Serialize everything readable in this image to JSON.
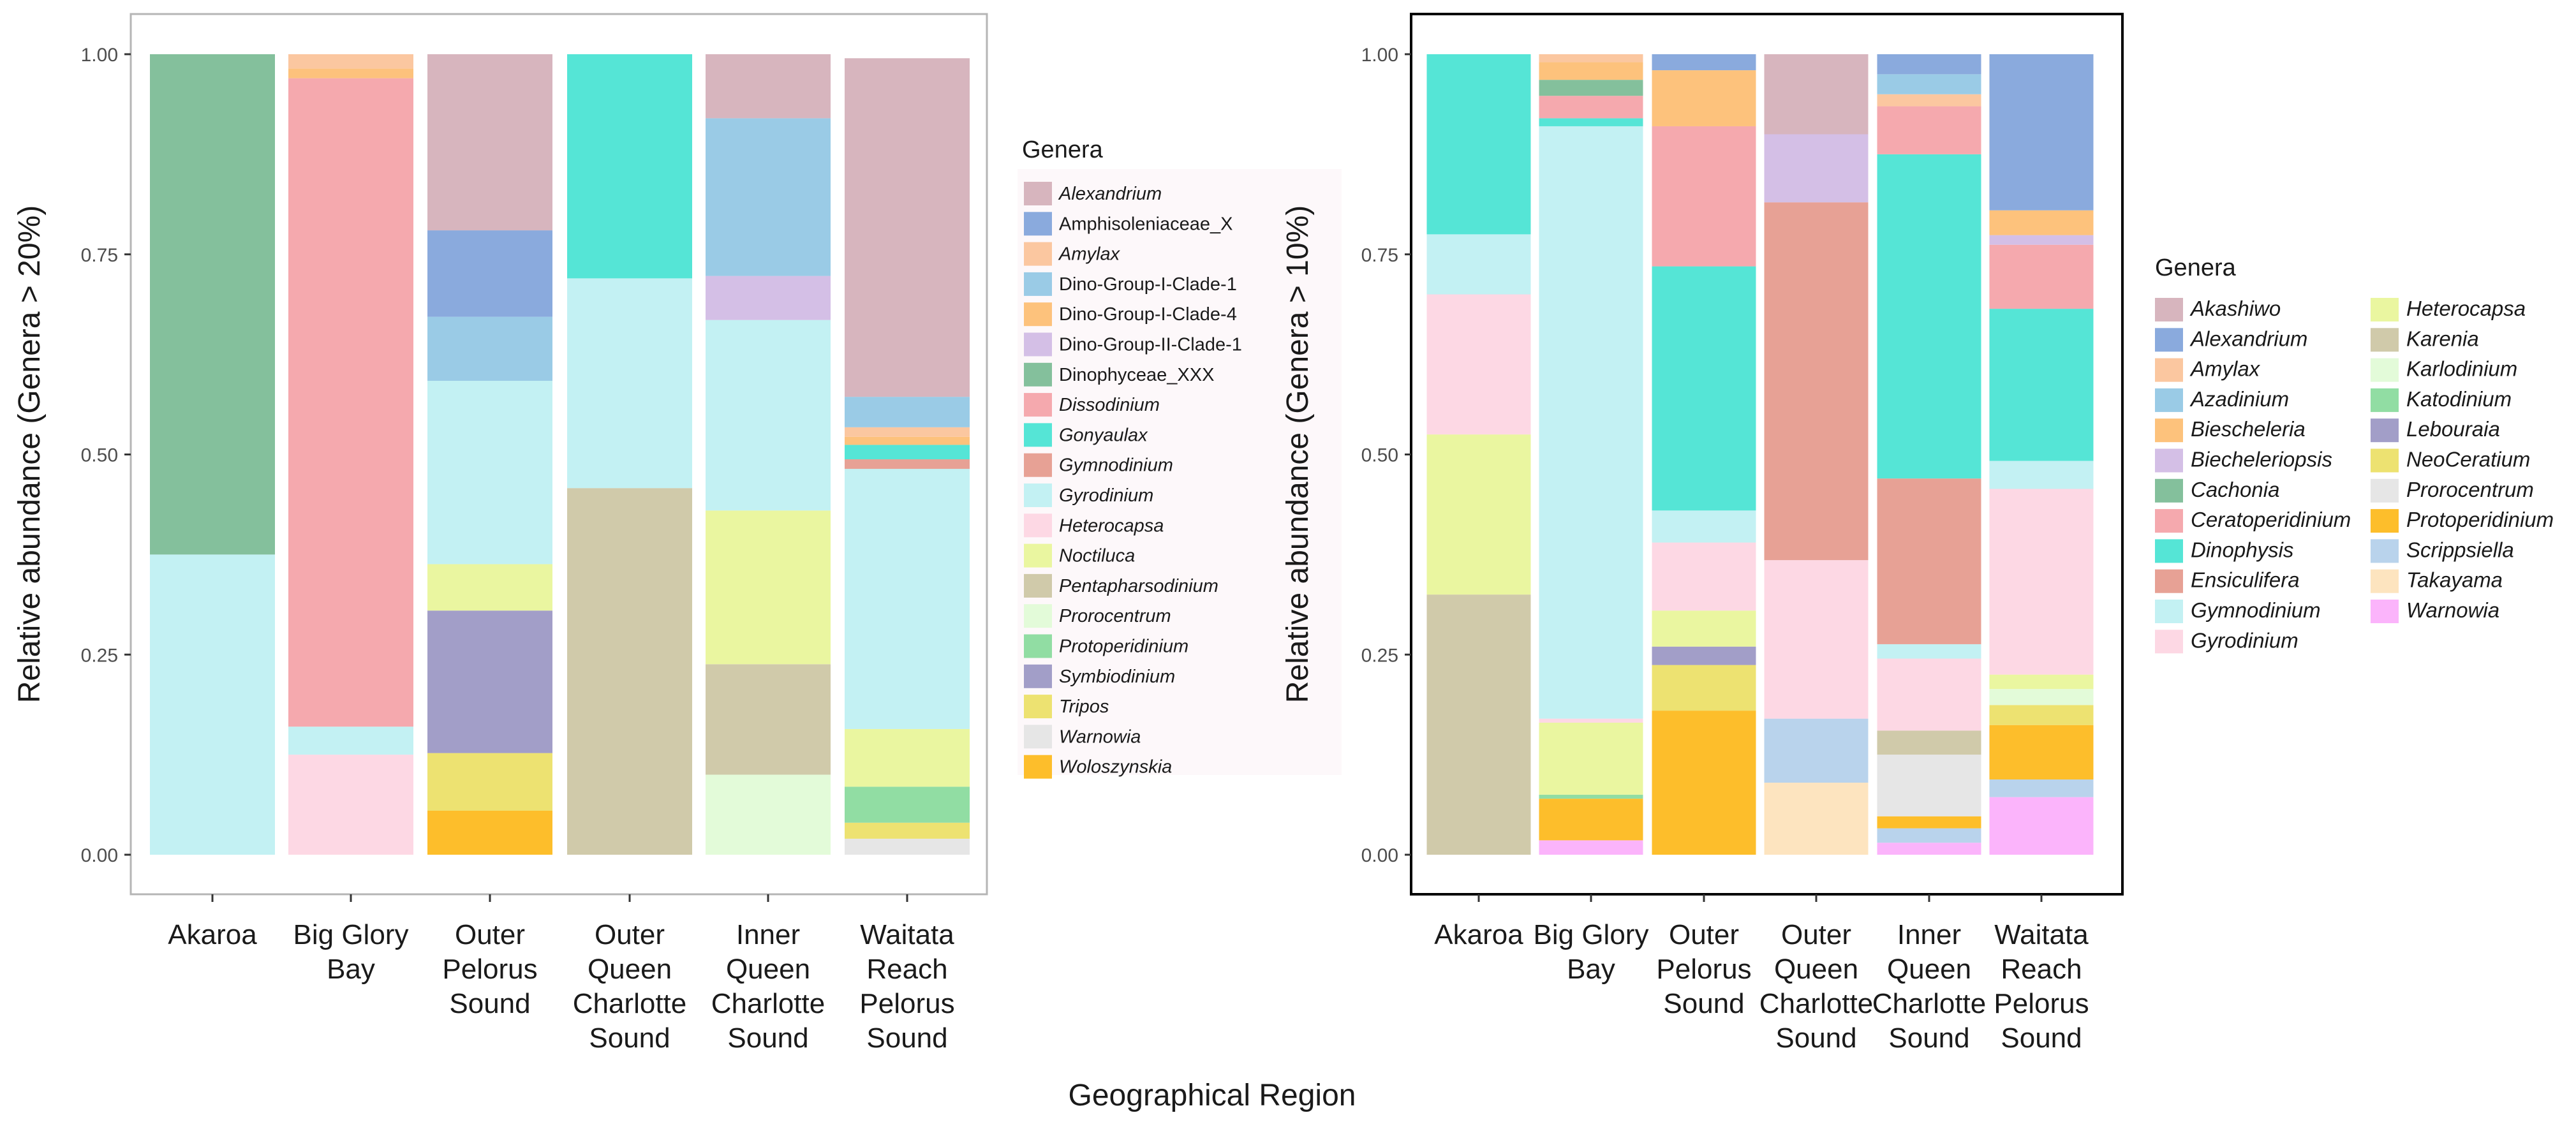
{
  "chart_data": [
    {
      "panel": "A",
      "type": "stacked-bar",
      "ylabel": "Relative abundance (Genera > 20%)",
      "xlabel": "Geographical Region",
      "ylim": [
        0,
        1
      ],
      "yticks": [
        "0.00",
        "0.25",
        "0.50",
        "0.75",
        "1.00"
      ],
      "categories": [
        [
          "Akaroa"
        ],
        [
          "Big Glory",
          "Bay"
        ],
        [
          "Outer",
          "Pelorus",
          "Sound"
        ],
        [
          "Outer",
          "Queen",
          "Charlotte",
          "Sound"
        ],
        [
          "Inner",
          "Queen",
          "Charlotte",
          "Sound"
        ],
        [
          "Waitata",
          "Reach",
          "Pelorus",
          "Sound"
        ]
      ],
      "legend_title": "Genera",
      "genera": [
        {
          "name": "Alexandrium",
          "color": "#D7B5BE",
          "italic": true
        },
        {
          "name": "Amphisoleniaceae_X",
          "color": "#8AAADD",
          "italic": false
        },
        {
          "name": "Amylax",
          "color": "#FBC7A0",
          "italic": true
        },
        {
          "name": "Dino-Group-I-Clade-1",
          "color": "#9ACBE6",
          "italic": false
        },
        {
          "name": "Dino-Group-I-Clade-4",
          "color": "#FDC27C",
          "italic": false
        },
        {
          "name": "Dino-Group-II-Clade-1",
          "color": "#D4BFE6",
          "italic": false
        },
        {
          "name": "Dinophyceae_XXX",
          "color": "#84C09C",
          "italic": false
        },
        {
          "name": "Dissodinium",
          "color": "#F5A9AE",
          "italic": true
        },
        {
          "name": "Gonyaulax",
          "color": "#55E5D6",
          "italic": true
        },
        {
          "name": "Gymnodinium",
          "color": "#E7A195",
          "italic": true
        },
        {
          "name": "Gyrodinium",
          "color": "#C3F1F3",
          "italic": true
        },
        {
          "name": "Heterocapsa",
          "color": "#FDD8E4",
          "italic": true
        },
        {
          "name": "Noctiluca",
          "color": "#EAF6A0",
          "italic": true
        },
        {
          "name": "Pentapharsodinium",
          "color": "#D0CAAA",
          "italic": true
        },
        {
          "name": "Prorocentrum",
          "color": "#E3FBD9",
          "italic": true
        },
        {
          "name": "Protoperidinium",
          "color": "#91DDA3",
          "italic": true
        },
        {
          "name": "Symbiodinium",
          "color": "#A29EC8",
          "italic": true
        },
        {
          "name": "Tripos",
          "color": "#EDE271",
          "italic": true
        },
        {
          "name": "Warnowia",
          "color": "#E6E6E6",
          "italic": true
        },
        {
          "name": "Woloszynskia",
          "color": "#FDBE2B",
          "italic": true
        }
      ],
      "stacks": [
        [
          {
            "genus": "Gyrodinium",
            "value": 0.375
          },
          {
            "genus": "Dinophyceae_XXX",
            "value": 0.625
          }
        ],
        [
          {
            "genus": "Heterocapsa",
            "value": 0.125
          },
          {
            "genus": "Gyrodinium",
            "value": 0.035
          },
          {
            "genus": "Dissodinium",
            "value": 0.81
          },
          {
            "genus": "Dino-Group-I-Clade-4",
            "value": 0.012
          },
          {
            "genus": "Amylax",
            "value": 0.018
          }
        ],
        [
          {
            "genus": "Woloszynskia",
            "value": 0.055
          },
          {
            "genus": "Tripos",
            "value": 0.072
          },
          {
            "genus": "Symbiodinium",
            "value": 0.178
          },
          {
            "genus": "Noctiluca",
            "value": 0.058
          },
          {
            "genus": "Gyrodinium",
            "value": 0.229
          },
          {
            "genus": "Dino-Group-I-Clade-1",
            "value": 0.08
          },
          {
            "genus": "Amphisoleniaceae_X",
            "value": 0.108
          },
          {
            "genus": "Alexandrium",
            "value": 0.22
          }
        ],
        [
          {
            "genus": "Pentapharsodinium",
            "value": 0.458
          },
          {
            "genus": "Gyrodinium",
            "value": 0.262
          },
          {
            "genus": "Gonyaulax",
            "value": 0.28
          }
        ],
        [
          {
            "genus": "Prorocentrum",
            "value": 0.1
          },
          {
            "genus": "Pentapharsodinium",
            "value": 0.138
          },
          {
            "genus": "Noctiluca",
            "value": 0.192
          },
          {
            "genus": "Gyrodinium",
            "value": 0.238
          },
          {
            "genus": "Dino-Group-II-Clade-1",
            "value": 0.055
          },
          {
            "genus": "Dino-Group-I-Clade-1",
            "value": 0.197
          },
          {
            "genus": "Alexandrium",
            "value": 0.08
          }
        ],
        [
          {
            "genus": "Warnowia",
            "value": 0.02
          },
          {
            "genus": "Tripos",
            "value": 0.02
          },
          {
            "genus": "Protoperidinium",
            "value": 0.045
          },
          {
            "genus": "Noctiluca",
            "value": 0.072
          },
          {
            "genus": "Gyrodinium",
            "value": 0.325
          },
          {
            "genus": "Gymnodinium",
            "value": 0.012
          },
          {
            "genus": "Gonyaulax",
            "value": 0.018
          },
          {
            "genus": "Dino-Group-I-Clade-4",
            "value": 0.01
          },
          {
            "genus": "Amylax",
            "value": 0.012
          },
          {
            "genus": "Dino-Group-I-Clade-1",
            "value": 0.038
          },
          {
            "genus": "Alexandrium",
            "value": 0.423
          }
        ]
      ]
    },
    {
      "panel": "B",
      "type": "stacked-bar",
      "ylabel": "Relative abundance (Genera > 10%)",
      "xlabel": "Geographical Region",
      "ylim": [
        0,
        1
      ],
      "yticks": [
        "0.00",
        "0.25",
        "0.50",
        "0.75",
        "1.00"
      ],
      "categories": [
        [
          "Akaroa"
        ],
        [
          "Big Glory",
          "Bay"
        ],
        [
          "Outer",
          "Pelorus",
          "Sound"
        ],
        [
          "Outer",
          "Queen",
          "Charlotte",
          "Sound"
        ],
        [
          "Inner",
          "Queen",
          "Charlotte",
          "Sound"
        ],
        [
          "Waitata",
          "Reach",
          "Pelorus",
          "Sound"
        ]
      ],
      "legend_title": "Genera",
      "genera": [
        {
          "name": "Akashiwo",
          "color": "#D7B5BE",
          "italic": true
        },
        {
          "name": "Alexandrium",
          "color": "#8AAADD",
          "italic": true
        },
        {
          "name": "Amylax",
          "color": "#FBC7A0",
          "italic": true
        },
        {
          "name": "Azadinium",
          "color": "#9ACBE6",
          "italic": true
        },
        {
          "name": "Biescheleria",
          "color": "#FDC27C",
          "italic": true
        },
        {
          "name": "Biecheleriopsis",
          "color": "#D4BFE6",
          "italic": true
        },
        {
          "name": "Cachonia",
          "color": "#84C09C",
          "italic": true
        },
        {
          "name": "Ceratoperidinium",
          "color": "#F5A9AE",
          "italic": true
        },
        {
          "name": "Dinophysis",
          "color": "#55E5D6",
          "italic": true
        },
        {
          "name": "Ensiculifera",
          "color": "#E7A195",
          "italic": true
        },
        {
          "name": "Gymnodinium",
          "color": "#C3F1F3",
          "italic": true
        },
        {
          "name": "Gyrodinium",
          "color": "#FDD8E4",
          "italic": true
        },
        {
          "name": "Heterocapsa",
          "color": "#EAF6A0",
          "italic": true
        },
        {
          "name": "Karenia",
          "color": "#D0CAAA",
          "italic": true
        },
        {
          "name": "Karlodinium",
          "color": "#E3FBD9",
          "italic": true
        },
        {
          "name": "Katodinium",
          "color": "#91DDA3",
          "italic": true
        },
        {
          "name": "Lebouraia",
          "color": "#A29EC8",
          "italic": true
        },
        {
          "name": "NeoCeratium",
          "color": "#EDE271",
          "italic": true
        },
        {
          "name": "Prorocentrum",
          "color": "#E6E6E6",
          "italic": true
        },
        {
          "name": "Protoperidinium",
          "color": "#FDBE2B",
          "italic": true
        },
        {
          "name": "Scrippsiella",
          "color": "#B9D3EC",
          "italic": true
        },
        {
          "name": "Takayama",
          "color": "#FDE4BF",
          "italic": true
        },
        {
          "name": "Warnowia",
          "color": "#FBB4FB",
          "italic": true
        }
      ],
      "stacks": [
        [
          {
            "genus": "Karenia",
            "value": 0.325
          },
          {
            "genus": "Heterocapsa",
            "value": 0.2
          },
          {
            "genus": "Gyrodinium",
            "value": 0.175
          },
          {
            "genus": "Gymnodinium",
            "value": 0.075
          },
          {
            "genus": "Dinophysis",
            "value": 0.225
          }
        ],
        [
          {
            "genus": "Warnowia",
            "value": 0.018
          },
          {
            "genus": "Protoperidinium",
            "value": 0.052
          },
          {
            "genus": "Katodinium",
            "value": 0.005
          },
          {
            "genus": "Heterocapsa",
            "value": 0.09
          },
          {
            "genus": "Gyrodinium",
            "value": 0.005
          },
          {
            "genus": "Gymnodinium",
            "value": 0.74
          },
          {
            "genus": "Dinophysis",
            "value": 0.01
          },
          {
            "genus": "Ceratoperidinium",
            "value": 0.028
          },
          {
            "genus": "Cachonia",
            "value": 0.02
          },
          {
            "genus": "Biescheleria",
            "value": 0.022
          },
          {
            "genus": "Amylax",
            "value": 0.01
          }
        ],
        [
          {
            "genus": "Protoperidinium",
            "value": 0.18
          },
          {
            "genus": "NeoCeratium",
            "value": 0.057
          },
          {
            "genus": "Lebouraia",
            "value": 0.023
          },
          {
            "genus": "Heterocapsa",
            "value": 0.045
          },
          {
            "genus": "Gyrodinium",
            "value": 0.085
          },
          {
            "genus": "Gymnodinium",
            "value": 0.04
          },
          {
            "genus": "Dinophysis",
            "value": 0.305
          },
          {
            "genus": "Ceratoperidinium",
            "value": 0.175
          },
          {
            "genus": "Biescheleria",
            "value": 0.07
          },
          {
            "genus": "Alexandrium",
            "value": 0.02
          }
        ],
        [
          {
            "genus": "Takayama",
            "value": 0.09
          },
          {
            "genus": "Scrippsiella",
            "value": 0.08
          },
          {
            "genus": "Gyrodinium",
            "value": 0.198
          },
          {
            "genus": "Ensiculifera",
            "value": 0.447
          },
          {
            "genus": "Biecheleriopsis",
            "value": 0.085
          },
          {
            "genus": "Akashiwo",
            "value": 0.1
          }
        ],
        [
          {
            "genus": "Warnowia",
            "value": 0.015
          },
          {
            "genus": "Scrippsiella",
            "value": 0.018
          },
          {
            "genus": "Protoperidinium",
            "value": 0.015
          },
          {
            "genus": "Prorocentrum",
            "value": 0.077
          },
          {
            "genus": "Karenia",
            "value": 0.03
          },
          {
            "genus": "Gyrodinium",
            "value": 0.09
          },
          {
            "genus": "Gymnodinium",
            "value": 0.018
          },
          {
            "genus": "Ensiculifera",
            "value": 0.207
          },
          {
            "genus": "Dinophysis",
            "value": 0.405
          },
          {
            "genus": "Ceratoperidinium",
            "value": 0.06
          },
          {
            "genus": "Amylax",
            "value": 0.015
          },
          {
            "genus": "Azadinium",
            "value": 0.025
          },
          {
            "genus": "Alexandrium",
            "value": 0.025
          }
        ],
        [
          {
            "genus": "Warnowia",
            "value": 0.072
          },
          {
            "genus": "Scrippsiella",
            "value": 0.022
          },
          {
            "genus": "Protoperidinium",
            "value": 0.068
          },
          {
            "genus": "NeoCeratium",
            "value": 0.025
          },
          {
            "genus": "Karlodinium",
            "value": 0.02
          },
          {
            "genus": "Heterocapsa",
            "value": 0.018
          },
          {
            "genus": "Gyrodinium",
            "value": 0.232
          },
          {
            "genus": "Gymnodinium",
            "value": 0.035
          },
          {
            "genus": "Dinophysis",
            "value": 0.19
          },
          {
            "genus": "Ceratoperidinium",
            "value": 0.08
          },
          {
            "genus": "Biecheleriopsis",
            "value": 0.012
          },
          {
            "genus": "Biescheleria",
            "value": 0.031
          },
          {
            "genus": "Alexandrium",
            "value": 0.195
          }
        ]
      ]
    }
  ]
}
